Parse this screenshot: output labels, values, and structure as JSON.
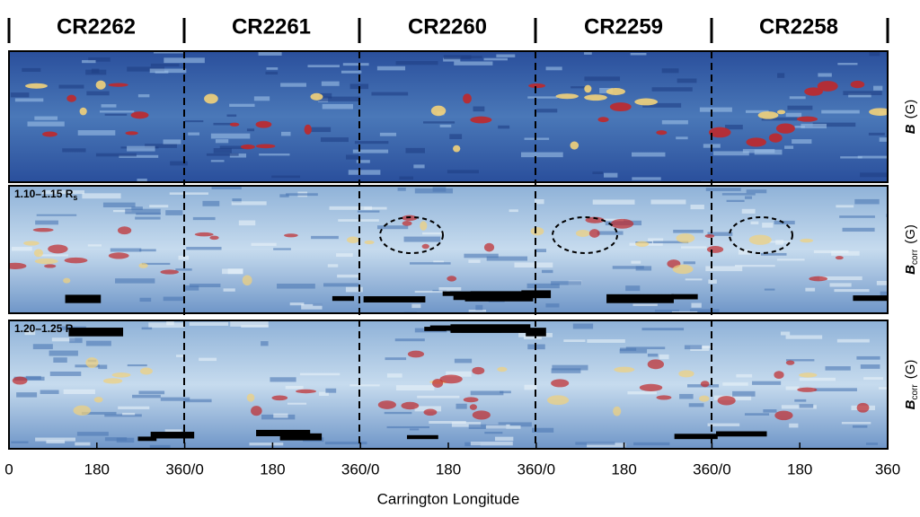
{
  "figure": {
    "headers": [
      "CR2262",
      "CR2261",
      "CR2260",
      "CR2259",
      "CR2258"
    ],
    "x_tick_labels": [
      "0",
      "180",
      "360/0",
      "180",
      "360/0",
      "180",
      "360/0",
      "180",
      "360/0",
      "180",
      "360"
    ],
    "x_axis_label": "Carrington Longitude",
    "panels": [
      {
        "label": null,
        "y_symbol": "B",
        "y_subscript": null,
        "y_unit": "(G)"
      },
      {
        "label": "1.10–1.15 R",
        "label_subscript": "s",
        "y_symbol": "B",
        "y_subscript": "corr",
        "y_unit": "(G)"
      },
      {
        "label": "1.20–1.25 R",
        "label_subscript": "s",
        "y_symbol": "B",
        "y_subscript": "corr",
        "y_unit": "(G)"
      }
    ]
  }
}
